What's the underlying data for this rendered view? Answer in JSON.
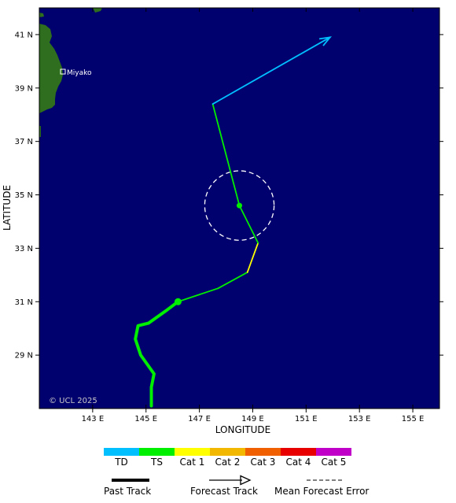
{
  "map": {
    "ocean_color": "#00006e",
    "land_color": "#2e6e1e",
    "copyright": "© UCL 2025",
    "x_axis_title": "LONGITUDE",
    "y_axis_title": "LATITUDE",
    "lon_ticks": [
      "143 E",
      "145 E",
      "147 E",
      "149 E",
      "151 E",
      "153 E",
      "155 E"
    ],
    "lat_ticks": [
      "41 N",
      "39 N",
      "37 N",
      "35 N",
      "33 N",
      "31 N",
      "29 N"
    ],
    "places": [
      {
        "name": "Miyako"
      }
    ]
  },
  "chart_data": {
    "type": "map-track",
    "past_track": [
      {
        "lon": 145.2,
        "lat": 27.1
      },
      {
        "lon": 145.2,
        "lat": 27.8
      },
      {
        "lon": 145.3,
        "lat": 28.3
      },
      {
        "lon": 144.8,
        "lat": 29.0
      },
      {
        "lon": 144.6,
        "lat": 29.6
      },
      {
        "lon": 144.7,
        "lat": 30.1
      },
      {
        "lon": 145.1,
        "lat": 30.2
      },
      {
        "lon": 145.8,
        "lat": 30.7
      },
      {
        "lon": 146.2,
        "lat": 31.0
      }
    ],
    "past_track_category": "TS",
    "current_position": {
      "lon": 146.2,
      "lat": 31.0
    },
    "forecast_segments": [
      {
        "from": {
          "lon": 146.2,
          "lat": 31.0
        },
        "to": {
          "lon": 147.7,
          "lat": 31.5
        },
        "category": "TS"
      },
      {
        "from": {
          "lon": 147.7,
          "lat": 31.5
        },
        "to": {
          "lon": 148.8,
          "lat": 32.1
        },
        "category": "TS"
      },
      {
        "from": {
          "lon": 148.8,
          "lat": 32.1
        },
        "to": {
          "lon": 149.2,
          "lat": 33.2
        },
        "category": "Cat 1"
      },
      {
        "from": {
          "lon": 149.2,
          "lat": 33.2
        },
        "to": {
          "lon": 148.5,
          "lat": 34.6
        },
        "category": "TS"
      },
      {
        "from": {
          "lon": 148.5,
          "lat": 34.6
        },
        "to": {
          "lon": 147.5,
          "lat": 38.4
        },
        "category": "TS"
      },
      {
        "from": {
          "lon": 147.5,
          "lat": 38.4
        },
        "to": {
          "lon": 151.9,
          "lat": 40.9
        },
        "category": "TD"
      }
    ],
    "forecast_point": {
      "lon": 148.5,
      "lat": 34.6
    },
    "mean_forecast_error": {
      "lon": 148.5,
      "lat": 34.6,
      "radius_deg": 1.3
    },
    "axes": {
      "lon_range": [
        141.0,
        156.0
      ],
      "lat_range": [
        27.0,
        42.0
      ]
    }
  },
  "legend": {
    "categories": [
      {
        "label": "TD",
        "color": "#00bfff"
      },
      {
        "label": "TS",
        "color": "#00ee00"
      },
      {
        "label": "Cat 1",
        "color": "#ffff00"
      },
      {
        "label": "Cat 2",
        "color": "#f2b800"
      },
      {
        "label": "Cat 3",
        "color": "#f06000"
      },
      {
        "label": "Cat 4",
        "color": "#e80000"
      },
      {
        "label": "Cat 5",
        "color": "#c000c8"
      }
    ],
    "past_track_label": "Past Track",
    "forecast_track_label": "Forecast Track",
    "mean_error_label": "Mean Forecast Error"
  }
}
